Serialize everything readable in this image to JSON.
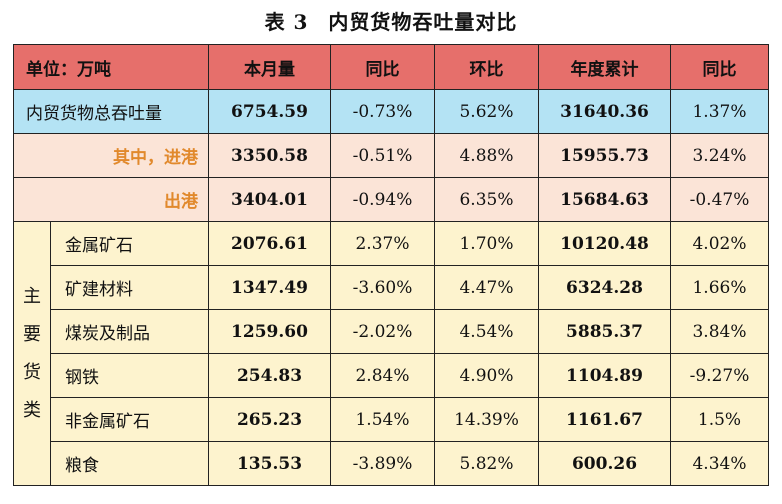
{
  "title": {
    "label": "表 3",
    "text": "内贸货物吞吐量对比"
  },
  "header": [
    "单位：万吨",
    "本月量",
    "同比",
    "环比",
    "年度累计",
    "同比"
  ],
  "total": {
    "label": "内贸货物总吞吐量",
    "values": [
      "6754.59",
      "-0.73%",
      "5.62%",
      "31640.36",
      "1.37%"
    ]
  },
  "inbound": {
    "label": "其中，进港",
    "values": [
      "3350.58",
      "-0.51%",
      "4.88%",
      "15955.73",
      "3.24%"
    ]
  },
  "outbound": {
    "label": "出港",
    "values": [
      "3404.01",
      "-0.94%",
      "6.35%",
      "15684.63",
      "-0.47%"
    ]
  },
  "goods_group_label": [
    "主",
    "要",
    "货",
    "类"
  ],
  "goods": [
    {
      "label": "金属矿石",
      "values": [
        "2076.61",
        "2.37%",
        "1.70%",
        "10120.48",
        "4.02%"
      ]
    },
    {
      "label": "矿建材料",
      "values": [
        "1347.49",
        "-3.60%",
        "4.47%",
        "6324.28",
        "1.66%"
      ]
    },
    {
      "label": "煤炭及制品",
      "values": [
        "1259.60",
        "-2.02%",
        "4.54%",
        "5885.37",
        "3.84%"
      ]
    },
    {
      "label": "钢铁",
      "values": [
        "254.83",
        "2.84%",
        "4.90%",
        "1104.89",
        "-9.27%"
      ]
    },
    {
      "label": "非金属矿石",
      "values": [
        "265.23",
        "1.54%",
        "14.39%",
        "1161.67",
        "1.5%"
      ]
    },
    {
      "label": "粮食",
      "values": [
        "135.53",
        "-3.89%",
        "5.82%",
        "600.26",
        "4.34%"
      ]
    }
  ],
  "colors": {
    "header": "#e66f6b",
    "total": "#b4e3f4",
    "inout": "#fbe4d7",
    "goods": "#fdf3ce",
    "inout_text": "#e1892c"
  }
}
